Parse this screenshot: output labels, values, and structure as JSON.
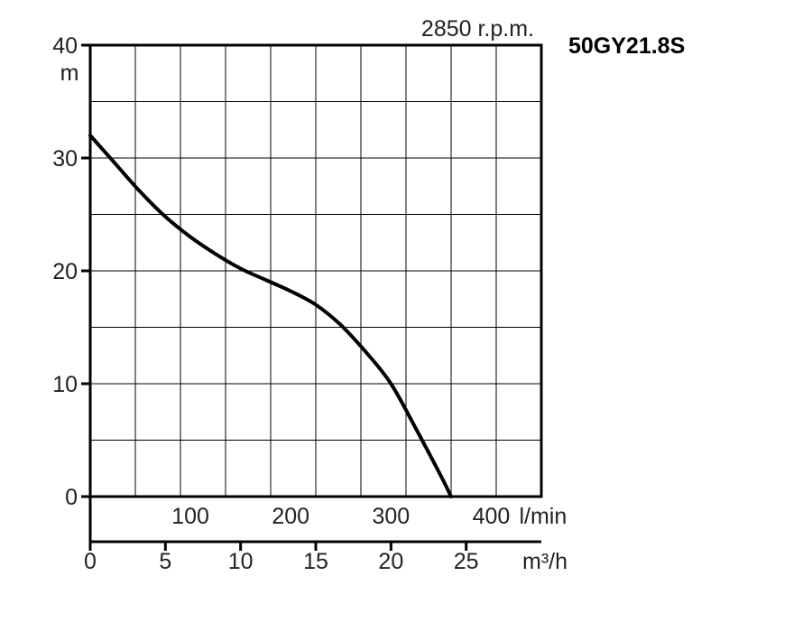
{
  "chart_data": {
    "type": "line",
    "model": "50GY21.8S",
    "speed": "2850 r.p.m.",
    "ylabel": "m",
    "ylim": [
      0,
      40
    ],
    "y_ticks": [
      0,
      10,
      20,
      30,
      40
    ],
    "flow_lpm_label": "l/min",
    "flow_lpm_ticks": [
      100,
      200,
      300,
      400
    ],
    "flow_lpm_range": [
      0,
      450
    ],
    "flow_m3h_label": "m³/h",
    "flow_m3h_ticks": [
      0,
      5,
      10,
      15,
      20,
      25
    ],
    "flow_m3h_range": [
      0,
      30
    ],
    "grid": true,
    "series": [
      {
        "x_lpm": [
          0,
          25,
          50,
          75,
          100,
          125,
          150,
          175,
          200,
          225,
          250,
          275,
          300,
          325,
          350,
          360
        ],
        "y_m": [
          32,
          29.5,
          27,
          24.8,
          23,
          21.5,
          20.2,
          19.2,
          18.2,
          17,
          15.2,
          12.8,
          10,
          6,
          1.8,
          0
        ]
      }
    ]
  }
}
